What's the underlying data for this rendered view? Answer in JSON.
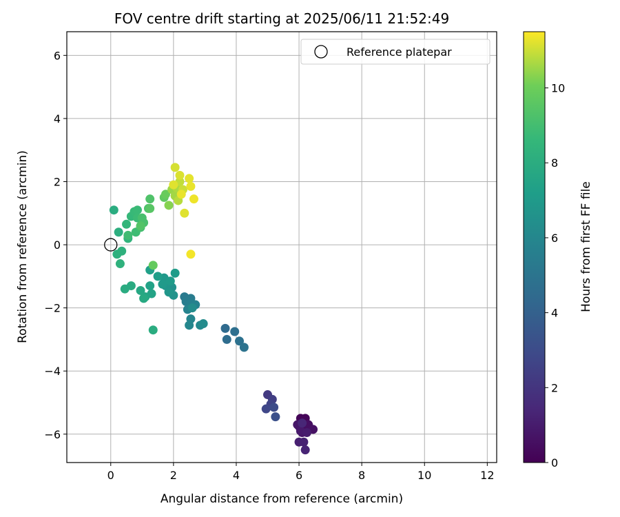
{
  "chart_data": {
    "type": "scatter",
    "title": "FOV centre drift starting at 2025/06/11 21:52:49",
    "xlabel": "Angular distance from reference (arcmin)",
    "ylabel": "Rotation from reference (arcmin)",
    "xlim": [
      -1.4,
      12.3
    ],
    "ylim": [
      -6.9,
      6.75
    ],
    "xticks": [
      0,
      2,
      4,
      6,
      8,
      10,
      12
    ],
    "yticks": [
      -6,
      -4,
      -2,
      0,
      2,
      4,
      6
    ],
    "grid": true,
    "legend": {
      "position": "top-right",
      "entries": [
        "Reference platepar"
      ]
    },
    "reference_point": {
      "x": 0,
      "y": 0,
      "label": "Reference platepar"
    },
    "colorbar": {
      "label": "Hours from first FF file",
      "colormap": "viridis",
      "range": [
        0,
        11.5
      ],
      "ticks": [
        0,
        2,
        4,
        6,
        8,
        10
      ]
    },
    "points": [
      {
        "x": 6.05,
        "y": -5.5,
        "c": 0.1
      },
      {
        "x": 6.2,
        "y": -5.5,
        "c": 0.2
      },
      {
        "x": 6.0,
        "y": -5.75,
        "c": 0.3
      },
      {
        "x": 6.15,
        "y": -5.8,
        "c": 0.4
      },
      {
        "x": 6.3,
        "y": -5.7,
        "c": 0.5
      },
      {
        "x": 6.45,
        "y": -5.85,
        "c": 0.6
      },
      {
        "x": 6.1,
        "y": -5.95,
        "c": 0.7
      },
      {
        "x": 5.95,
        "y": -5.7,
        "c": 0.8
      },
      {
        "x": 6.05,
        "y": -5.9,
        "c": 0.9
      },
      {
        "x": 6.25,
        "y": -5.95,
        "c": 1.0
      },
      {
        "x": 6.0,
        "y": -6.25,
        "c": 1.1
      },
      {
        "x": 6.15,
        "y": -6.25,
        "c": 1.2
      },
      {
        "x": 6.2,
        "y": -6.5,
        "c": 1.3
      },
      {
        "x": 6.1,
        "y": -5.65,
        "c": 1.4
      },
      {
        "x": 5.0,
        "y": -4.75,
        "c": 2.2
      },
      {
        "x": 5.15,
        "y": -4.9,
        "c": 2.4
      },
      {
        "x": 5.1,
        "y": -5.05,
        "c": 2.6
      },
      {
        "x": 4.95,
        "y": -5.2,
        "c": 2.8
      },
      {
        "x": 5.2,
        "y": -5.15,
        "c": 3.0
      },
      {
        "x": 5.25,
        "y": -5.45,
        "c": 3.2
      },
      {
        "x": 3.65,
        "y": -2.65,
        "c": 4.5
      },
      {
        "x": 3.7,
        "y": -3.0,
        "c": 4.6
      },
      {
        "x": 3.95,
        "y": -2.75,
        "c": 4.7
      },
      {
        "x": 4.1,
        "y": -3.05,
        "c": 4.8
      },
      {
        "x": 4.25,
        "y": -3.25,
        "c": 4.9
      },
      {
        "x": 2.35,
        "y": -1.65,
        "c": 5.3
      },
      {
        "x": 2.55,
        "y": -1.7,
        "c": 5.4
      },
      {
        "x": 2.4,
        "y": -1.8,
        "c": 5.5
      },
      {
        "x": 2.55,
        "y": -1.85,
        "c": 5.6
      },
      {
        "x": 2.7,
        "y": -1.9,
        "c": 5.7
      },
      {
        "x": 2.45,
        "y": -2.05,
        "c": 5.8
      },
      {
        "x": 2.55,
        "y": -2.35,
        "c": 5.9
      },
      {
        "x": 2.5,
        "y": -2.55,
        "c": 6.0
      },
      {
        "x": 2.85,
        "y": -2.55,
        "c": 6.1
      },
      {
        "x": 2.95,
        "y": -2.5,
        "c": 6.2
      },
      {
        "x": 2.6,
        "y": -2.0,
        "c": 6.25
      },
      {
        "x": 1.85,
        "y": -1.2,
        "c": 6.4
      },
      {
        "x": 1.95,
        "y": -1.35,
        "c": 6.5
      },
      {
        "x": 2.0,
        "y": -1.6,
        "c": 6.6
      },
      {
        "x": 1.75,
        "y": -1.3,
        "c": 6.7
      },
      {
        "x": 1.85,
        "y": -1.5,
        "c": 6.8
      },
      {
        "x": 1.7,
        "y": -1.05,
        "c": 6.9
      },
      {
        "x": 1.65,
        "y": -1.25,
        "c": 7.0
      },
      {
        "x": 1.9,
        "y": -1.15,
        "c": 7.05
      },
      {
        "x": 2.05,
        "y": -0.9,
        "c": 7.1
      },
      {
        "x": 1.5,
        "y": -1.0,
        "c": 7.2
      },
      {
        "x": 1.25,
        "y": -0.8,
        "c": 7.3
      },
      {
        "x": 1.25,
        "y": -1.3,
        "c": 7.4
      },
      {
        "x": 1.3,
        "y": -1.55,
        "c": 7.5
      },
      {
        "x": 1.1,
        "y": -1.65,
        "c": 7.6
      },
      {
        "x": 0.95,
        "y": -1.45,
        "c": 7.7
      },
      {
        "x": 1.05,
        "y": -1.7,
        "c": 7.8
      },
      {
        "x": 0.65,
        "y": -1.3,
        "c": 7.9
      },
      {
        "x": 0.45,
        "y": -1.4,
        "c": 7.95
      },
      {
        "x": 1.35,
        "y": -2.7,
        "c": 8.0
      },
      {
        "x": 0.1,
        "y": 1.1,
        "c": 8.0
      },
      {
        "x": 0.25,
        "y": 0.4,
        "c": 8.1
      },
      {
        "x": 0.2,
        "y": -0.3,
        "c": 8.2
      },
      {
        "x": 0.35,
        "y": -0.2,
        "c": 8.25
      },
      {
        "x": 0.3,
        "y": -0.6,
        "c": 8.3
      },
      {
        "x": 0.55,
        "y": 0.2,
        "c": 8.4
      },
      {
        "x": 0.5,
        "y": 0.65,
        "c": 8.5
      },
      {
        "x": 0.65,
        "y": 0.9,
        "c": 8.6
      },
      {
        "x": 0.75,
        "y": 1.05,
        "c": 8.7
      },
      {
        "x": 0.85,
        "y": 1.1,
        "c": 8.75
      },
      {
        "x": 0.85,
        "y": 0.85,
        "c": 8.8
      },
      {
        "x": 0.8,
        "y": 0.4,
        "c": 8.85
      },
      {
        "x": 0.55,
        "y": 0.3,
        "c": 8.9
      },
      {
        "x": 0.95,
        "y": 0.55,
        "c": 9.0
      },
      {
        "x": 1.0,
        "y": 0.85,
        "c": 9.1
      },
      {
        "x": 1.05,
        "y": 0.7,
        "c": 9.15
      },
      {
        "x": 1.2,
        "y": 1.15,
        "c": 9.2
      },
      {
        "x": 1.25,
        "y": 1.45,
        "c": 9.3
      },
      {
        "x": 0.95,
        "y": 0.6,
        "c": 9.4
      },
      {
        "x": 1.25,
        "y": 1.15,
        "c": 9.5
      },
      {
        "x": 1.7,
        "y": 1.5,
        "c": 9.7
      },
      {
        "x": 1.75,
        "y": 1.6,
        "c": 9.9
      },
      {
        "x": 1.35,
        "y": -0.65,
        "c": 9.8
      },
      {
        "x": 1.85,
        "y": 1.25,
        "c": 10.3
      },
      {
        "x": 1.95,
        "y": 1.75,
        "c": 10.5
      },
      {
        "x": 2.05,
        "y": 1.55,
        "c": 10.6
      },
      {
        "x": 2.1,
        "y": 1.8,
        "c": 10.7
      },
      {
        "x": 2.15,
        "y": 1.4,
        "c": 10.8
      },
      {
        "x": 2.2,
        "y": 2.0,
        "c": 10.9
      },
      {
        "x": 2.3,
        "y": 1.75,
        "c": 11.0
      },
      {
        "x": 2.05,
        "y": 2.45,
        "c": 11.1
      },
      {
        "x": 2.2,
        "y": 2.2,
        "c": 11.15
      },
      {
        "x": 2.35,
        "y": 1.0,
        "c": 11.2
      },
      {
        "x": 2.5,
        "y": 2.1,
        "c": 11.25
      },
      {
        "x": 2.55,
        "y": 1.85,
        "c": 11.3
      },
      {
        "x": 2.65,
        "y": 1.45,
        "c": 11.35
      },
      {
        "x": 2.55,
        "y": -0.3,
        "c": 11.4
      },
      {
        "x": 2.0,
        "y": 1.9,
        "c": 11.2
      },
      {
        "x": 2.25,
        "y": 1.6,
        "c": 11.3
      }
    ]
  }
}
